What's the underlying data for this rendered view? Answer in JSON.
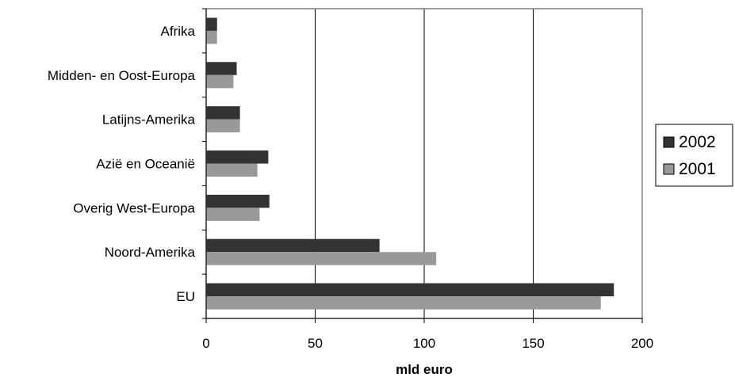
{
  "chart_data": {
    "type": "bar",
    "orientation": "horizontal",
    "categories": [
      "Afrika",
      "Midden- en Oost-Europa",
      "Latijns-Amerika",
      "Azië en Oceanië",
      "Overig West-Europa",
      "Noord-Amerika",
      "EU"
    ],
    "series": [
      {
        "name": "2002",
        "color": "#333333",
        "values": [
          5,
          14,
          15.5,
          28.5,
          29,
          79.5,
          187
        ]
      },
      {
        "name": "2001",
        "color": "#999999",
        "values": [
          5,
          12.5,
          15.5,
          23.5,
          24.5,
          105.5,
          181
        ]
      }
    ],
    "title": "",
    "xlabel": "mld euro",
    "ylabel": "",
    "xlim": [
      0,
      200
    ],
    "xticks": [
      "0",
      "50",
      "100",
      "150",
      "200"
    ],
    "grid": "vertical",
    "legend": "right"
  }
}
